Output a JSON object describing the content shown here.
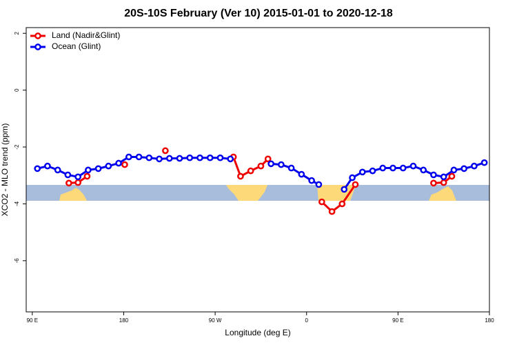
{
  "chart_data": {
    "type": "line",
    "title": "20S-10S February (Ver 10)   2015-01-01 to 2020-12-18",
    "x_label": "Longitude (deg E)",
    "y_label": "XCO2 - MLO trend (ppm)",
    "xlim": [
      -276,
      180
    ],
    "ylim": [
      -7.8,
      2.2
    ],
    "xticks": [
      {
        "value": -270,
        "label": "90 E"
      },
      {
        "value": -180,
        "label": "180"
      },
      {
        "value": -90,
        "label": "90 W"
      },
      0,
      {
        "value": 90,
        "label": "90 E"
      },
      180
    ],
    "yticks": [
      2,
      0,
      -2,
      -4,
      -6
    ],
    "legend": "top-left",
    "series": [
      {
        "name": "Land (Nadir&Glint)",
        "color": "#ee0000",
        "x": [
          -234,
          -225,
          -216,
          null,
          -179,
          null,
          -139,
          null,
          -72,
          -65,
          -55,
          -45,
          -38,
          null,
          15,
          25,
          35,
          48,
          null,
          125,
          135,
          143
        ],
        "values": [
          -3.27,
          -3.25,
          -3.03,
          null,
          -2.62,
          null,
          -2.13,
          null,
          -2.35,
          -3.03,
          -2.84,
          -2.67,
          -2.42,
          null,
          -3.93,
          -4.27,
          -4.0,
          -3.32,
          null,
          -3.27,
          -3.25,
          -3.03
        ]
      },
      {
        "name": "Ocean (Glint)",
        "color": "#0000ee",
        "x": [
          -265,
          -255,
          -245,
          -235,
          -225,
          -215,
          -205,
          -195,
          -185,
          -175,
          -165,
          -155,
          -145,
          -135,
          -125,
          -115,
          -105,
          -95,
          -85,
          -75,
          null,
          -35,
          -25,
          -15,
          -5,
          5,
          12,
          null,
          37,
          45,
          55,
          65,
          75,
          85,
          95,
          105,
          115,
          125,
          135,
          145,
          155,
          165,
          175
        ],
        "values": [
          -2.76,
          -2.67,
          -2.81,
          -2.98,
          -3.05,
          -2.81,
          -2.76,
          -2.67,
          -2.57,
          -2.35,
          -2.35,
          -2.38,
          -2.42,
          -2.4,
          -2.4,
          -2.38,
          -2.38,
          -2.38,
          -2.38,
          -2.42,
          null,
          -2.59,
          -2.62,
          -2.74,
          -2.96,
          -3.18,
          -3.32,
          null,
          -3.49,
          -3.08,
          -2.88,
          -2.84,
          -2.74,
          -2.74,
          -2.74,
          -2.67,
          -2.81,
          -2.98,
          -3.05,
          -2.81,
          -2.76,
          -2.67,
          -2.55
        ]
      }
    ]
  }
}
